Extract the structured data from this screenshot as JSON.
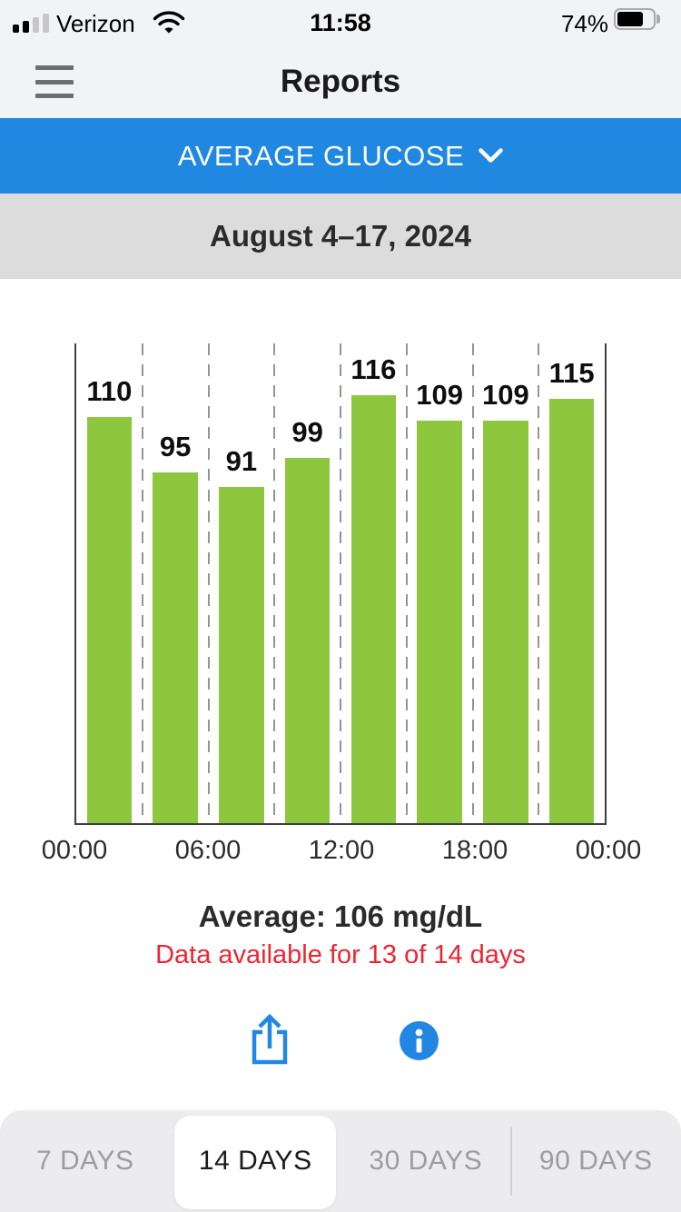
{
  "status_bar": {
    "carrier": "Verizon",
    "time": "11:58",
    "battery_percent": "74%",
    "battery_level": 74
  },
  "header": {
    "title": "Reports"
  },
  "report_selector": {
    "label": "AVERAGE GLUCOSE"
  },
  "date_range": {
    "label": "August 4–17, 2024"
  },
  "chart_data": {
    "type": "bar",
    "title": "Average glucose by 3-hour period of day",
    "categories": [
      "00:00–03:00",
      "03:00–06:00",
      "06:00–09:00",
      "09:00–12:00",
      "12:00–15:00",
      "15:00–18:00",
      "18:00–21:00",
      "21:00–00:00"
    ],
    "values": [
      110,
      95,
      91,
      99,
      116,
      109,
      109,
      115
    ],
    "unit": "mg/dL",
    "x_tick_labels": [
      "00:00",
      "06:00",
      "12:00",
      "18:00",
      "00:00"
    ],
    "xlabel": "",
    "ylabel": "",
    "ylim": [
      0,
      130
    ],
    "grid": "dashed vertical gridlines every 3 hours",
    "bar_color": "#8dc73e"
  },
  "summary": {
    "average_label": "Average: 106 mg/dL",
    "availability_label": "Data available for 13 of 14 days"
  },
  "tabs": {
    "items": [
      {
        "label": "7 DAYS",
        "selected": false
      },
      {
        "label": "14 DAYS",
        "selected": true
      },
      {
        "label": "30 DAYS",
        "selected": false
      },
      {
        "label": "90 DAYS",
        "selected": false
      }
    ]
  },
  "colors": {
    "accent_blue": "#2088e0",
    "bar_green": "#8dc73e",
    "alert_red": "#ed2533",
    "chrome_gray": "#f2f3f5",
    "date_bar_gray": "#dcdcdd",
    "tab_bar_gray": "#ececee"
  }
}
